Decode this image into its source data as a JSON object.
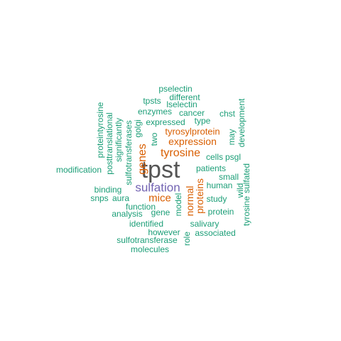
{
  "colors": {
    "largest": "#555555",
    "purple": "#7263b2",
    "orange": "#d95f02",
    "teal": "#1b9e77"
  },
  "words": [
    {
      "text": "tpst",
      "tier": "largest"
    },
    {
      "text": "sulfation",
      "tier": "purple"
    },
    {
      "text": "tyrosine",
      "tier": "orange"
    },
    {
      "text": "expression",
      "tier": "orange"
    },
    {
      "text": "tyrosylprotein",
      "tier": "orange"
    },
    {
      "text": "mice",
      "tier": "orange"
    },
    {
      "text": "genes",
      "tier": "orange"
    },
    {
      "text": "normal",
      "tier": "orange"
    },
    {
      "text": "proteins",
      "tier": "orange"
    },
    {
      "text": "pselectin",
      "tier": "teal"
    },
    {
      "text": "different",
      "tier": "teal"
    },
    {
      "text": "tpsts",
      "tier": "teal"
    },
    {
      "text": "lselectin",
      "tier": "teal"
    },
    {
      "text": "enzymes",
      "tier": "teal"
    },
    {
      "text": "cancer",
      "tier": "teal"
    },
    {
      "text": "chst",
      "tier": "teal"
    },
    {
      "text": "expressed",
      "tier": "teal"
    },
    {
      "text": "type",
      "tier": "teal"
    },
    {
      "text": "may",
      "tier": "teal"
    },
    {
      "text": "development",
      "tier": "teal"
    },
    {
      "text": "proteintyrosine",
      "tier": "teal"
    },
    {
      "text": "posttranslational",
      "tier": "teal"
    },
    {
      "text": "significantly",
      "tier": "teal"
    },
    {
      "text": "sulfotransferases",
      "tier": "teal"
    },
    {
      "text": "golgi",
      "tier": "teal"
    },
    {
      "text": "two",
      "tier": "teal"
    },
    {
      "text": "cells",
      "tier": "teal"
    },
    {
      "text": "psgl",
      "tier": "teal"
    },
    {
      "text": "patients",
      "tier": "teal"
    },
    {
      "text": "small",
      "tier": "teal"
    },
    {
      "text": "modification",
      "tier": "teal"
    },
    {
      "text": "human",
      "tier": "teal"
    },
    {
      "text": "sulfated",
      "tier": "teal"
    },
    {
      "text": "wild",
      "tier": "teal"
    },
    {
      "text": "binding",
      "tier": "teal"
    },
    {
      "text": "snps",
      "tier": "teal"
    },
    {
      "text": "aura",
      "tier": "teal"
    },
    {
      "text": "study",
      "tier": "teal"
    },
    {
      "text": "function",
      "tier": "teal"
    },
    {
      "text": "model",
      "tier": "teal"
    },
    {
      "text": "analysis",
      "tier": "teal"
    },
    {
      "text": "gene",
      "tier": "teal"
    },
    {
      "text": "protein",
      "tier": "teal"
    },
    {
      "text": "tyrosine",
      "tier": "teal"
    },
    {
      "text": "identified",
      "tier": "teal"
    },
    {
      "text": "salivary",
      "tier": "teal"
    },
    {
      "text": "however",
      "tier": "teal"
    },
    {
      "text": "role",
      "tier": "teal"
    },
    {
      "text": "associated",
      "tier": "teal"
    },
    {
      "text": "sulfotransferase",
      "tier": "teal"
    },
    {
      "text": "molecules",
      "tier": "teal"
    }
  ]
}
